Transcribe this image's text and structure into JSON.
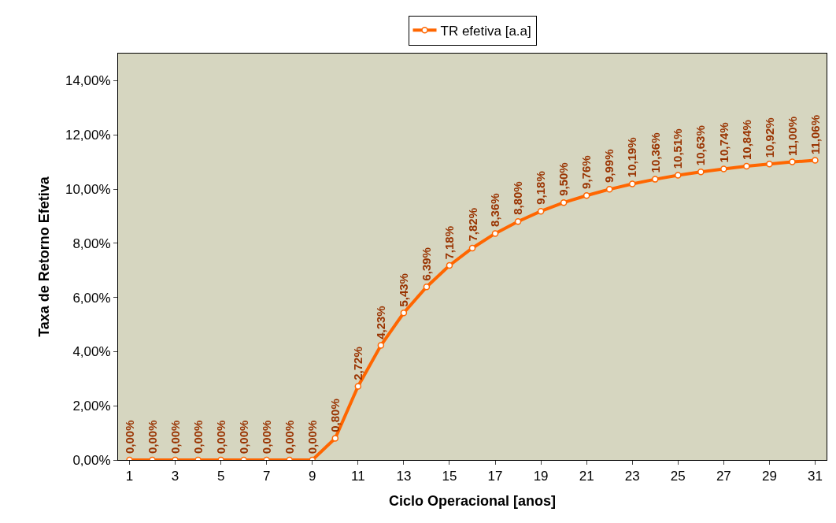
{
  "chart_data": {
    "type": "line",
    "xlabel": "Ciclo Operacional [anos]",
    "ylabel": "Taxa de Retorno Efetiva",
    "x": [
      1,
      2,
      3,
      4,
      5,
      6,
      7,
      8,
      9,
      10,
      11,
      12,
      13,
      14,
      15,
      16,
      17,
      18,
      19,
      20,
      21,
      22,
      23,
      24,
      25,
      26,
      27,
      28,
      29,
      30,
      31
    ],
    "series": [
      {
        "name": "TR efetiva [a.a]",
        "color": "#ff6600",
        "values": [
          0,
          0,
          0,
          0,
          0,
          0,
          0,
          0,
          0,
          0.8,
          2.72,
          4.23,
          5.43,
          6.39,
          7.18,
          7.82,
          8.36,
          8.8,
          9.18,
          9.5,
          9.76,
          9.99,
          10.19,
          10.36,
          10.51,
          10.63,
          10.74,
          10.84,
          10.92,
          11.0,
          11.06
        ],
        "value_labels": [
          "0,00%",
          "0,00%",
          "0,00%",
          "0,00%",
          "0,00%",
          "0,00%",
          "0,00%",
          "0,00%",
          "0,00%",
          "0,80%",
          "2,72%",
          "4,23%",
          "5,43%",
          "6,39%",
          "7,18%",
          "7,82%",
          "8,36%",
          "8,80%",
          "9,18%",
          "9,50%",
          "9,76%",
          "9,99%",
          "10,19%",
          "10,36%",
          "10,51%",
          "10,63%",
          "10,74%",
          "10,84%",
          "10,92%",
          "11,00%",
          "11,06%"
        ]
      }
    ],
    "xlim": [
      0.5,
      31.5
    ],
    "xticks": [
      1,
      3,
      5,
      7,
      9,
      11,
      13,
      15,
      17,
      19,
      21,
      23,
      25,
      27,
      29,
      31
    ],
    "ylim": [
      0,
      15
    ],
    "yticks": [
      {
        "value": 0,
        "label": "0,00%"
      },
      {
        "value": 2,
        "label": "2,00%"
      },
      {
        "value": 4,
        "label": "4,00%"
      },
      {
        "value": 6,
        "label": "6,00%"
      },
      {
        "value": 8,
        "label": "8,00%"
      },
      {
        "value": 10,
        "label": "10,00%"
      },
      {
        "value": 12,
        "label": "12,00%"
      },
      {
        "value": 14,
        "label": "14,00%"
      }
    ],
    "grid": false,
    "legend": "top",
    "marker": "circle",
    "line_style": "solid"
  }
}
